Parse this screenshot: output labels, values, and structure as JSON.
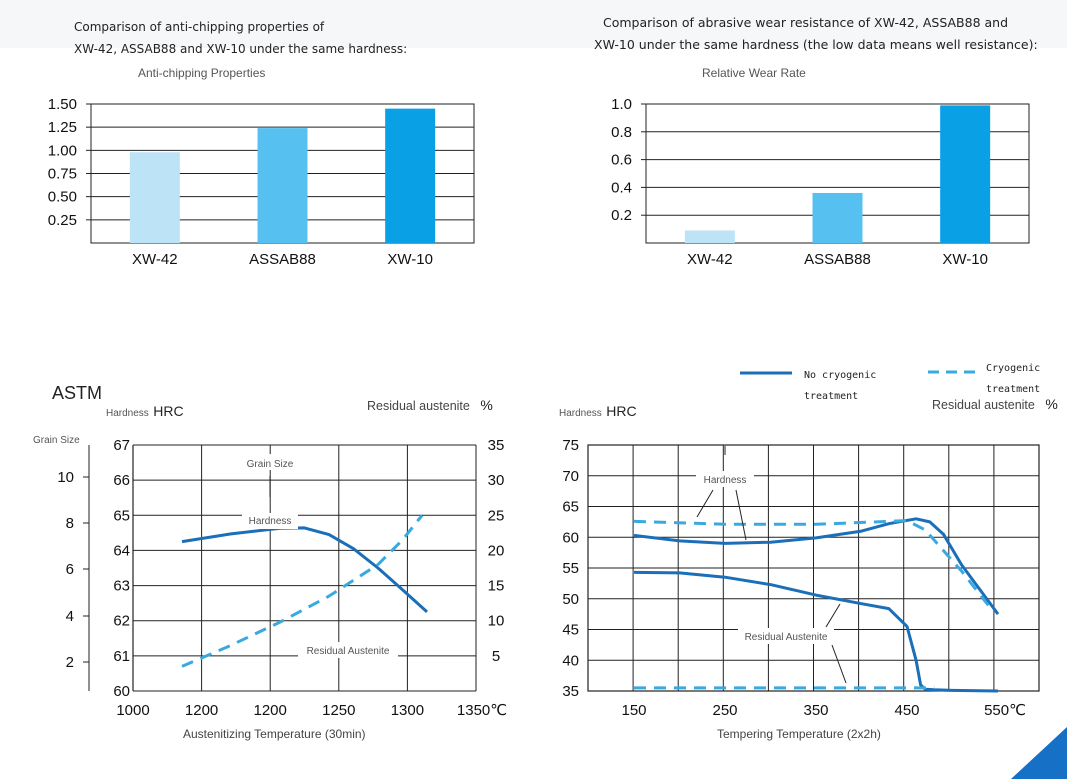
{
  "header": {
    "left_caption": [
      "Comparison of anti-chipping properties of",
      "XW-42, ASSAB88 and XW-10 under the same hardness:"
    ],
    "right_caption": [
      "Comparison of abrasive wear resistance of XW-42, ASSAB88 and",
      "XW-10 under the same hardness (the low data means well resistance):"
    ]
  },
  "colors": {
    "light_blue": "#bde3f7",
    "mid_blue": "#56c1f1",
    "dark_blue": "#0aa0e6",
    "line_blue": "#1a6fb8",
    "dash_blue": "#39a9df",
    "corner": "#1570c6"
  },
  "chart_data": [
    {
      "type": "bar",
      "title": "Anti-chipping Properties",
      "categories": [
        "XW-42",
        "ASSAB88",
        "XW-10"
      ],
      "values": [
        0.98,
        1.24,
        1.45
      ],
      "ylim": [
        0,
        1.5
      ],
      "yticks": [
        "0.25",
        "0.50",
        "0.75",
        "1.00",
        "1.25",
        "1.50"
      ],
      "grid": true
    },
    {
      "type": "bar",
      "title": "Relative Wear Rate",
      "categories": [
        "XW-42",
        "ASSAB88",
        "XW-10"
      ],
      "values": [
        0.09,
        0.36,
        0.99
      ],
      "ylim": [
        0,
        1.0
      ],
      "yticks": [
        "0.2",
        "0.4",
        "0.6",
        "0.8",
        "1.0"
      ],
      "grid": true
    },
    {
      "type": "line",
      "title": "ASTM",
      "xlabel": "Austenitizing Temperature (30min)",
      "xticks": [
        "1000",
        "1200",
        "1200",
        "1250",
        "1300",
        "1350℃"
      ],
      "xlim": [
        1000,
        1350
      ],
      "y_left_label": "Hardness",
      "y_left_unit": "HRC",
      "y_left_ticks": [
        "60",
        "61",
        "62",
        "63",
        "64",
        "65",
        "66",
        "67"
      ],
      "y_left_range": [
        60,
        67
      ],
      "y_grain_label": "Grain Size",
      "y_grain_ticks": [
        "2",
        "4",
        "6",
        "8",
        "10"
      ],
      "y_right_label": "Residual austenite",
      "y_right_unit": "%",
      "y_right_ticks": [
        "5",
        "10",
        "15",
        "20",
        "25",
        "30",
        "35"
      ],
      "y_right_range": [
        0,
        35
      ],
      "annotations": [
        "Grain Size",
        "Hardness",
        "Residual Austenite"
      ],
      "series": [
        {
          "style": "solid",
          "x": [
            1050,
            1100,
            1150,
            1175,
            1200,
            1225,
            1250,
            1275,
            1300
          ],
          "y": [
            64.25,
            64.47,
            64.63,
            64.64,
            64.45,
            64.05,
            63.5,
            62.88,
            62.25
          ]
        },
        {
          "style": "dashed",
          "x": [
            1050,
            1100,
            1150,
            1200,
            1250,
            1275,
            1295
          ],
          "y": [
            3.5,
            6.5,
            9.8,
            13.5,
            18.0,
            21.5,
            25.0
          ]
        }
      ]
    },
    {
      "type": "line",
      "xlabel": "Tempering Temperature (2x2h)",
      "xticks": [
        "150",
        "250",
        "350",
        "450",
        "550℃"
      ],
      "xlim": [
        150,
        550
      ],
      "y_left_label": "Hardness",
      "y_left_unit": "HRC",
      "y_left_ticks": [
        "35",
        "40",
        "45",
        "50",
        "55",
        "60",
        "65",
        "70",
        "75"
      ],
      "ylim": [
        35,
        75
      ],
      "y_right_label": "Residual austenite",
      "y_right_unit": "%",
      "legend": [
        {
          "style": "solid",
          "label": [
            "No cryogenic",
            "treatment"
          ]
        },
        {
          "style": "dashed",
          "label": [
            "Cryogenic",
            "treatment"
          ]
        }
      ],
      "annotations": [
        "Hardness",
        "Residual Austenite"
      ],
      "series": [
        {
          "style": "solid",
          "x": [
            150,
            200,
            250,
            300,
            350,
            400,
            430,
            460,
            475,
            490,
            510,
            530,
            550
          ],
          "y": [
            60.3,
            59.4,
            59.0,
            59.2,
            59.9,
            61.0,
            62.2,
            63.0,
            62.5,
            60.5,
            55.5,
            51.5,
            47.5
          ]
        },
        {
          "style": "dashed",
          "x": [
            150,
            250,
            350,
            450,
            470,
            510,
            540
          ],
          "y": [
            62.6,
            62.1,
            62.1,
            62.7,
            61.2,
            54.5,
            48.8
          ]
        },
        {
          "style": "solid",
          "x": [
            150,
            200,
            250,
            300,
            350,
            400,
            430,
            450,
            460,
            465,
            470,
            480,
            500,
            550
          ],
          "y": [
            54.3,
            54.2,
            53.5,
            52.3,
            50.6,
            49.2,
            48.4,
            45.5,
            40.0,
            36.0,
            35.3,
            35.2,
            35.1,
            35.0
          ]
        },
        {
          "style": "dashed",
          "x": [
            150,
            350,
            480
          ],
          "y": [
            35.5,
            35.5,
            35.5
          ]
        }
      ]
    }
  ]
}
